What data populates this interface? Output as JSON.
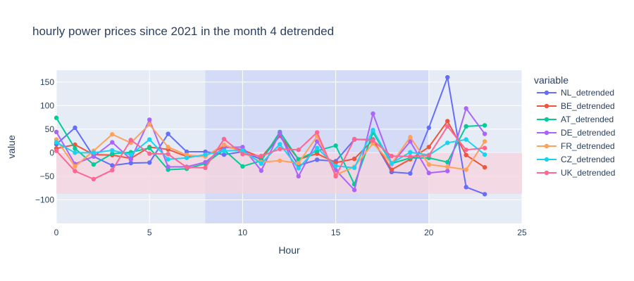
{
  "chart_data": {
    "type": "line",
    "title": "hourly power prices since 2021 in the month 4  detrended",
    "xlabel": "Hour",
    "ylabel": "value",
    "xlim": [
      0,
      25
    ],
    "ylim": [
      -150,
      175
    ],
    "x_ticks": [
      0,
      5,
      10,
      15,
      20,
      25
    ],
    "y_ticks": [
      -100,
      -50,
      0,
      50,
      100,
      150
    ],
    "grid": true,
    "legend": {
      "title": "variable",
      "placement": "right"
    },
    "shapes": {
      "vertical_band": {
        "x0": 8,
        "x1": 20,
        "color": "#c6cdf5"
      },
      "horizontal_band": {
        "y0": -87,
        "y1": 0,
        "color": "#f6d3dc"
      }
    },
    "x": [
      0,
      1,
      2,
      3,
      4,
      5,
      6,
      7,
      8,
      9,
      10,
      11,
      12,
      13,
      14,
      15,
      16,
      17,
      18,
      19,
      20,
      21,
      22,
      23
    ],
    "series": [
      {
        "name": "NL_detrended",
        "color": "#636efa",
        "values": [
          18,
          53,
          -8,
          -27,
          -22,
          -21,
          40,
          2,
          2,
          -4,
          2,
          -14,
          36,
          -27,
          -15,
          -18,
          28,
          28,
          -41,
          -44,
          53,
          160,
          -73,
          -88
        ]
      },
      {
        "name": "BE_detrended",
        "color": "#EF553B",
        "values": [
          9,
          17,
          -4,
          -5,
          -12,
          12,
          7,
          -8,
          -7,
          13,
          6,
          -10,
          37,
          -14,
          -2,
          -21,
          -13,
          27,
          -36,
          -14,
          12,
          67,
          -5,
          -31
        ]
      },
      {
        "name": "AT_detrended",
        "color": "#00cc96",
        "values": [
          74,
          9,
          -25,
          -2,
          1,
          10,
          -36,
          -34,
          -23,
          6,
          -29,
          -17,
          44,
          -14,
          4,
          15,
          -67,
          43,
          -23,
          -11,
          -11,
          -20,
          56,
          58
        ]
      },
      {
        "name": "DE_detrended",
        "color": "#ab63fa",
        "values": [
          44,
          -24,
          -8,
          22,
          -14,
          70,
          -30,
          -30,
          -20,
          11,
          12,
          -38,
          42,
          -50,
          24,
          -37,
          -79,
          83,
          -24,
          24,
          -43,
          -39,
          94,
          40
        ]
      },
      {
        "name": "FR_detrended",
        "color": "#FFA15A",
        "values": [
          28,
          -29,
          4,
          39,
          21,
          60,
          12,
          -5,
          -8,
          17,
          1,
          -20,
          -17,
          -22,
          35,
          -47,
          -30,
          20,
          -23,
          33,
          -25,
          -30,
          -36,
          24
        ]
      },
      {
        "name": "CZ_detrended",
        "color": "#19d3f3",
        "values": [
          22,
          0,
          0,
          5,
          -4,
          28,
          -14,
          -11,
          -4,
          4,
          5,
          -23,
          18,
          -33,
          10,
          -28,
          -32,
          48,
          -22,
          1,
          -5,
          21,
          28,
          -4
        ]
      },
      {
        "name": "UK_detrended",
        "color": "#FF6692",
        "values": [
          4,
          -39,
          -56,
          -37,
          27,
          -2,
          -3,
          -31,
          -32,
          29,
          -3,
          -7,
          8,
          6,
          43,
          -50,
          29,
          26,
          -7,
          -8,
          -6,
          56,
          6,
          10
        ]
      }
    ]
  }
}
